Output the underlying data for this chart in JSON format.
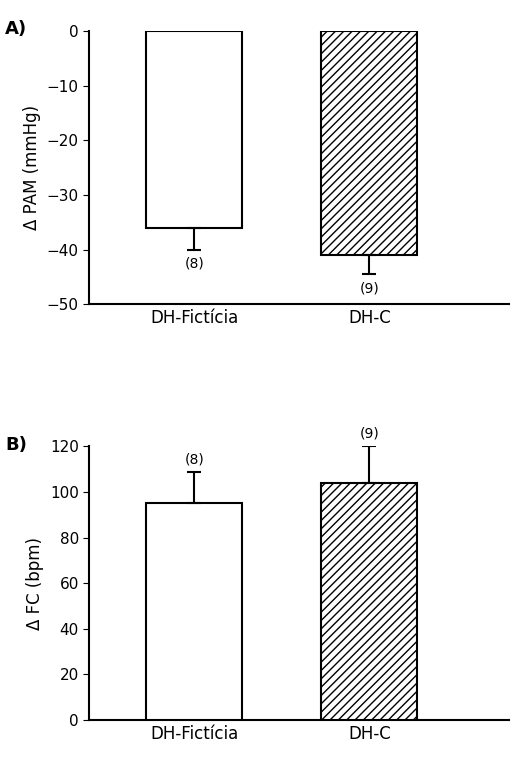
{
  "panel_A": {
    "categories": [
      "DH-Fictícia",
      "DH-C"
    ],
    "values": [
      -36.0,
      -41.0
    ],
    "errors": [
      4.0,
      3.5
    ],
    "n_labels": [
      "(8)",
      "(9)"
    ],
    "ylabel": "Δ PAM (mmHg)",
    "ylim": [
      -50,
      0
    ],
    "yticks": [
      0,
      -10,
      -20,
      -30,
      -40,
      -50
    ],
    "panel_label": "A)",
    "hatch_patterns": [
      "",
      "////"
    ]
  },
  "panel_B": {
    "categories": [
      "DH-Fictícia",
      "DH-C"
    ],
    "values": [
      95,
      104
    ],
    "errors": [
      14,
      16
    ],
    "n_labels": [
      "(8)",
      "(9)"
    ],
    "ylabel": "Δ FC (bpm)",
    "ylim": [
      0,
      120
    ],
    "yticks": [
      0,
      20,
      40,
      60,
      80,
      100,
      120
    ],
    "panel_label": "B)",
    "hatch_patterns": [
      "",
      "////"
    ]
  },
  "legend_labels": [
    "DH-FICTÍCIA",
    "DH-C"
  ],
  "legend_hatch": [
    "",
    "////"
  ],
  "bar_edgecolor": "#000000",
  "bar_facecolor": "#ffffff",
  "bar_width": 0.55,
  "fontsize_ticklabels": 11,
  "fontsize_ylabel": 12,
  "fontsize_panel_label": 13,
  "fontsize_legend": 11,
  "fontsize_n_labels": 10,
  "fontsize_xticklabels": 12,
  "background_color": "#ffffff",
  "linewidth": 1.5,
  "x_positions": [
    1,
    2
  ],
  "xlim": [
    0.4,
    2.8
  ]
}
